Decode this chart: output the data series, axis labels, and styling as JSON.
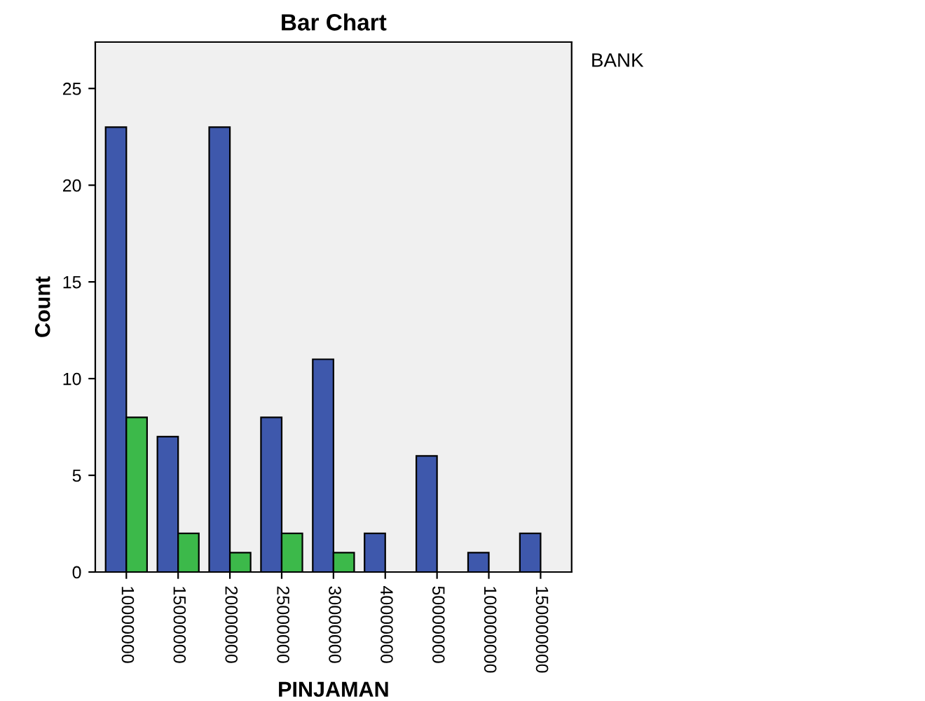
{
  "chart_data": {
    "type": "bar",
    "title": "Bar Chart",
    "xlabel": "PINJAMAN",
    "ylabel": "Count",
    "legend_title": "BANK",
    "categories": [
      "10000000",
      "15000000",
      "20000000",
      "25000000",
      "30000000",
      "40000000",
      "50000000",
      "100000000",
      "150000000"
    ],
    "series": [
      {
        "color": "#3e58ac",
        "values": [
          23,
          7,
          23,
          8,
          11,
          2,
          6,
          1,
          2
        ]
      },
      {
        "color": "#3cb94a",
        "values": [
          8,
          2,
          1,
          2,
          1,
          null,
          null,
          null,
          null
        ]
      }
    ],
    "ylim": [
      0,
      27.4
    ],
    "yticks": [
      0,
      5,
      10,
      15,
      20,
      25
    ],
    "grid": false
  }
}
